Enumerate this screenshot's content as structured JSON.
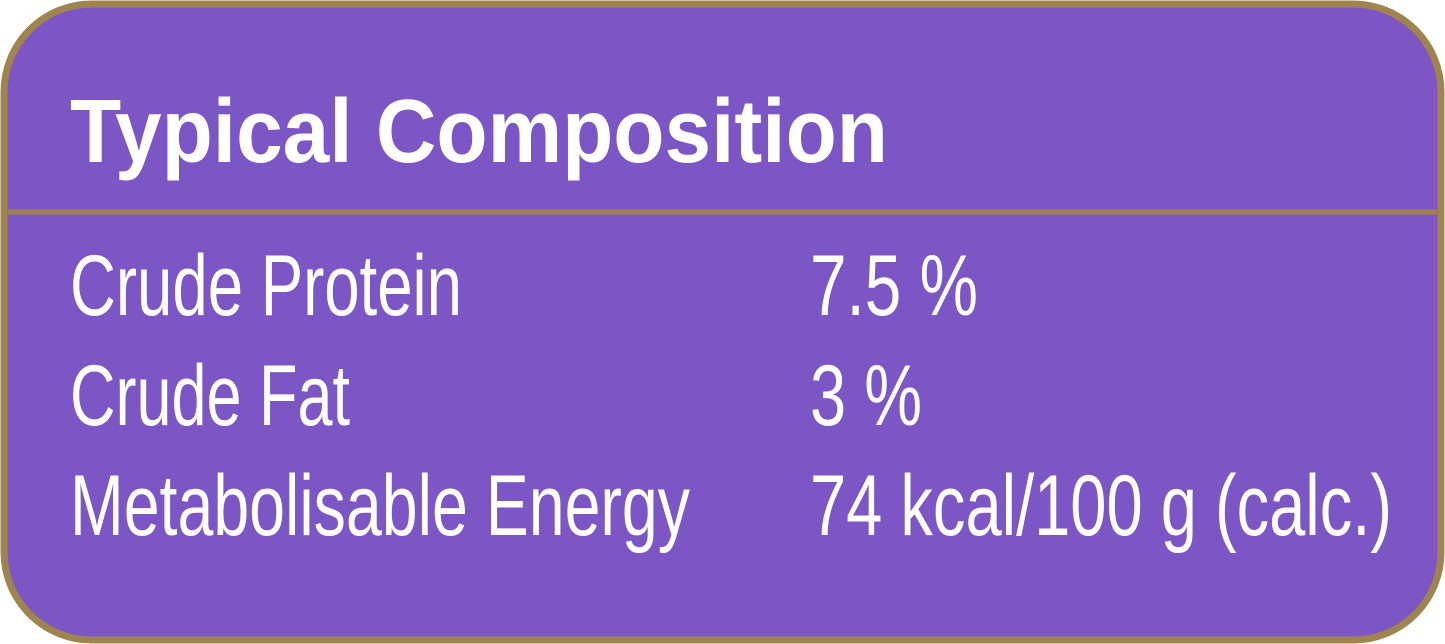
{
  "header": {
    "title": "Typical Composition"
  },
  "table": {
    "rows": [
      [
        "Crude Protein",
        "7.5 %"
      ],
      [
        "Crude Fat",
        "3 %"
      ],
      [
        "Metabolisable Energy",
        "74 kcal/100 g (calc.)"
      ]
    ]
  }
}
